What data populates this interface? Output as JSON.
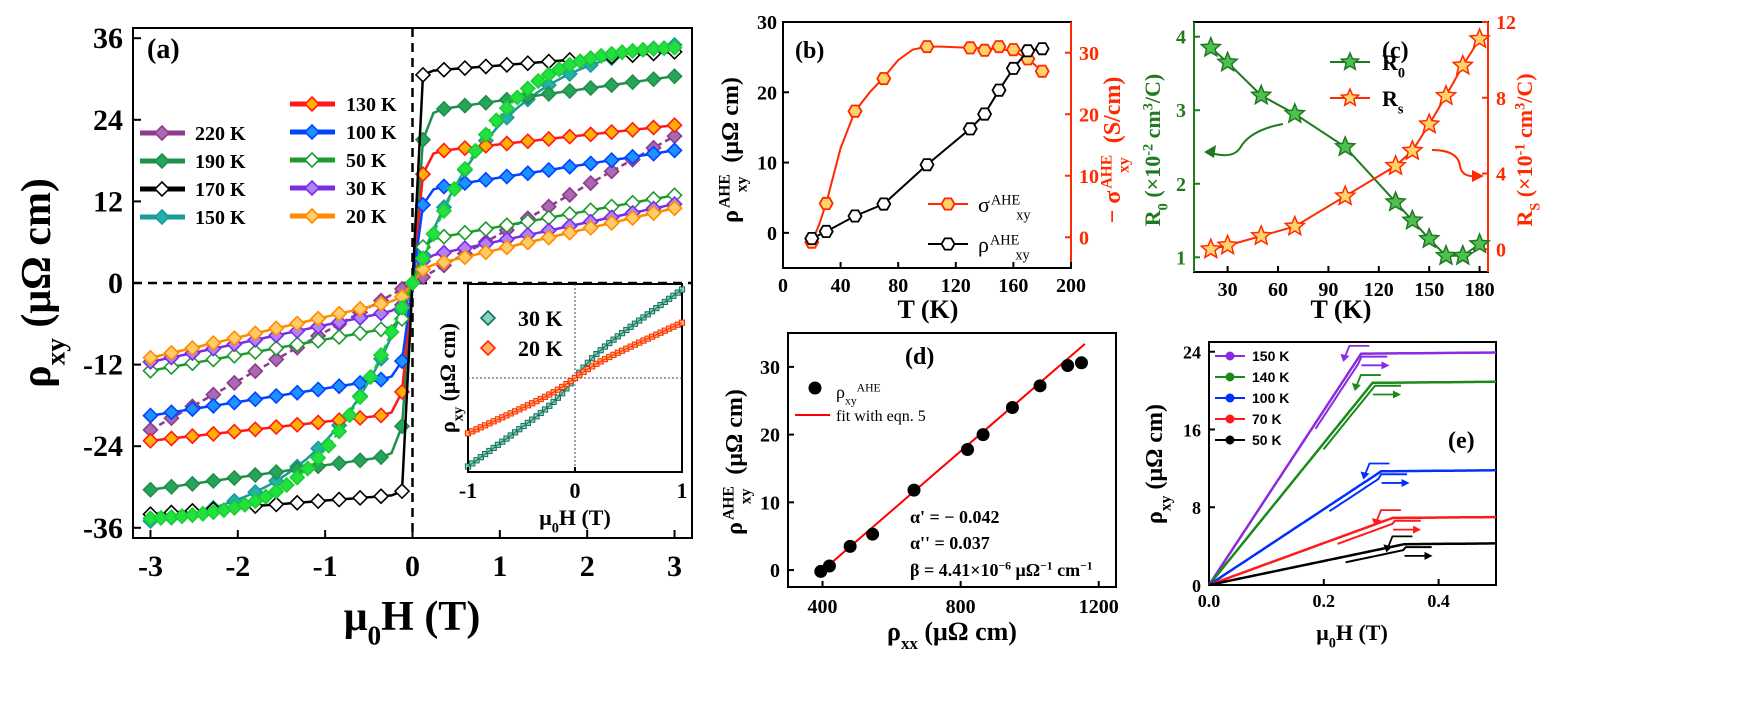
{
  "chart_data": [
    {
      "id": "a",
      "type": "line",
      "panel_label": "(a)",
      "xlabel_main": "μ",
      "xlabel_sub": "0",
      "xlabel_rest": "H (T)",
      "ylabel_main": "ρ",
      "ylabel_sub": "xy",
      "ylabel_rest": " (μΩ cm)",
      "xlim": [
        -3.2,
        3.2
      ],
      "ylim": [
        -37.5,
        37.5
      ],
      "xticks": [
        -3,
        -2,
        -1,
        0,
        1,
        2,
        3
      ],
      "xtick_labels": [
        "-3",
        "-2",
        "-1",
        "0",
        "1",
        "2",
        "3"
      ],
      "yticks": [
        -36,
        -24,
        -12,
        0,
        12,
        24,
        36
      ],
      "ytick_labels": [
        "-36",
        "-24",
        "-12",
        "0",
        "12",
        "24",
        "36"
      ],
      "series": [
        {
          "name": "220 K",
          "color": "#8e3a8e",
          "fill": "#a86ab0",
          "sat": 0,
          "slope": 7.2,
          "jump": 0.5
        },
        {
          "name": "190 K",
          "color": "#1f8f4a",
          "fill": "#27a35a",
          "sat": 25.0,
          "slope": 1.8,
          "jump": 0.2
        },
        {
          "name": "170 K",
          "color": "#000000",
          "fill": "#ffffff",
          "sat": 31.0,
          "slope": 1.1,
          "jump": 0.1
        },
        {
          "name": "150 K",
          "color": "#1a9a9a",
          "fill": "#22b0a8",
          "sat": 0,
          "slope": 11.5,
          "jump": 0.8
        },
        {
          "name": "130 K",
          "color": "#ff1a1a",
          "fill": "#ffb000",
          "sat": 19.0,
          "slope": 1.4,
          "jump": 0.1
        },
        {
          "name": "100 K",
          "color": "#0044ff",
          "fill": "#1e90ff",
          "sat": 13.5,
          "slope": 2.0,
          "jump": 0.1
        },
        {
          "name": "50 K",
          "color": "#1e9a2e",
          "fill": "#ffffff",
          "sat": 6.0,
          "slope": 2.3,
          "jump": 0.1
        },
        {
          "name": "30 K",
          "color": "#7a2ee0",
          "fill": "#b080ff",
          "sat": 3.5,
          "slope": 2.7,
          "jump": 0.1
        },
        {
          "name": "20 K",
          "color": "#ff8c00",
          "fill": "#ffcc66",
          "sat": 2.0,
          "slope": 3.0,
          "jump": 0.1
        },
        {
          "name": "",
          "color": "#18d030",
          "fill": "#22e040",
          "sat": 0,
          "slope": 12.5,
          "jump": 1.6
        }
      ],
      "legend_left": [
        "220 K",
        "190 K",
        "170 K",
        "150 K"
      ],
      "legend_right": [
        "130 K",
        "100 K",
        "50 K",
        "30 K",
        "20 K"
      ],
      "inset": {
        "ylabel_main": "ρ",
        "ylabel_sub": "xy",
        "ylabel_rest": " (μΩ cm)",
        "xlabel_main": "μ",
        "xlabel_sub": "0",
        "xlabel_rest": "H (T)",
        "xticks": [
          "-1",
          "0",
          "1"
        ],
        "legend": [
          "30 K",
          "20 K"
        ],
        "colors": [
          "#1a6e5a",
          "#ff2a00"
        ],
        "fills": [
          "#7fd4c0",
          "#ffb070"
        ],
        "slopes": [
          7.0,
          4.5
        ]
      }
    },
    {
      "id": "b",
      "type": "line",
      "panel_label": "(b)",
      "xlabel": "T (K)",
      "ylabel_left_main": "ρ",
      "ylabel_left_sup": "AHE",
      "ylabel_left_sub": "xy",
      "ylabel_left_rest": " (μΩ cm)",
      "ylabel_right_prefix": "− σ",
      "ylabel_right_sup": "AHE",
      "ylabel_right_sub": "xy",
      "ylabel_right_rest": " (S/cm)",
      "xlim": [
        0,
        200
      ],
      "ylim_left": [
        -5,
        30
      ],
      "ylim_right": [
        -5,
        35
      ],
      "xticks": [
        "0",
        "40",
        "80",
        "120",
        "160",
        "200"
      ],
      "yticks_left": [
        "0",
        "10",
        "20",
        "30"
      ],
      "yticks_right": [
        "0",
        "10",
        "20",
        "30"
      ],
      "rho_T": [
        20,
        30,
        50,
        70,
        100,
        130,
        140,
        150,
        160,
        170,
        180
      ],
      "rho_values": [
        -0.8,
        0.2,
        2.4,
        4.1,
        9.7,
        14.8,
        16.9,
        20.3,
        23.4,
        25.9,
        26.2
      ],
      "sigma_T": [
        20,
        30,
        50,
        70,
        100,
        130,
        140,
        150,
        160,
        170,
        180
      ],
      "sigma_values": [
        -0.8,
        5.5,
        20.5,
        25.8,
        31.0,
        30.8,
        30.4,
        31.0,
        30.5,
        29.0,
        27.0
      ],
      "legend": [
        {
          "main": "σ",
          "sup": "AHE",
          "sub": "xy",
          "color": "#ff2a00",
          "fill": "#ffd36b"
        },
        {
          "main": "ρ",
          "sup": "AHE",
          "sub": "xy",
          "color": "#000000",
          "fill": "#ffffff"
        }
      ]
    },
    {
      "id": "c",
      "type": "line",
      "panel_label": "(c)",
      "xlabel": "T (K)",
      "ylabel_left_main": "R",
      "ylabel_left_sub": "0",
      "ylabel_left_rest": " (×10",
      "ylabel_left_exp": "-2",
      "ylabel_left_unit": " cm",
      "ylabel_left_unit_exp": "3",
      "ylabel_left_end": "/C)",
      "ylabel_right_main": "R",
      "ylabel_right_sub": "S",
      "ylabel_right_rest": " (×10",
      "ylabel_right_exp": "-1",
      "ylabel_right_unit": " cm",
      "ylabel_right_unit_exp": "3",
      "ylabel_right_end": "/C)",
      "xlim": [
        10,
        185
      ],
      "ylim_left": [
        0.8,
        4.2
      ],
      "ylim_right": [
        -1.2,
        12
      ],
      "xticks": [
        "30",
        "60",
        "90",
        "120",
        "150",
        "180"
      ],
      "yticks_left": [
        "1",
        "2",
        "3",
        "4"
      ],
      "yticks_right": [
        "0",
        "4",
        "8",
        "12"
      ],
      "T": [
        20,
        30,
        50,
        70,
        100,
        130,
        140,
        150,
        160,
        170,
        180
      ],
      "R0": [
        3.85,
        3.65,
        3.2,
        2.95,
        2.5,
        1.75,
        1.5,
        1.25,
        1.02,
        1.02,
        1.18
      ],
      "Rs": [
        0.0,
        0.2,
        0.7,
        1.2,
        2.8,
        4.4,
        5.2,
        6.6,
        8.1,
        9.7,
        11.1
      ],
      "legend": [
        {
          "main": "R",
          "sub": "0",
          "color": "#1f7a1f",
          "fill": "#4fbf4f"
        },
        {
          "main": "R",
          "sub": "s",
          "color": "#ff2a00",
          "fill": "#ffd36b"
        }
      ]
    },
    {
      "id": "d",
      "type": "scatter",
      "panel_label": "(d)",
      "xlabel_main": "ρ",
      "xlabel_sub": "xx",
      "xlabel_rest": " (μΩ cm)",
      "ylabel_main": "ρ",
      "ylabel_sup": "AHE",
      "ylabel_sub": "xy",
      "ylabel_rest": " (μΩ cm)",
      "xlim": [
        300,
        1250
      ],
      "ylim": [
        -2.5,
        35
      ],
      "xticks": [
        "400",
        "800",
        "1200"
      ],
      "yticks": [
        "0",
        "10",
        "20",
        "30"
      ],
      "x": [
        395,
        420,
        480,
        545,
        665,
        820,
        865,
        950,
        1030,
        1110,
        1150
      ],
      "y": [
        -0.2,
        0.6,
        3.5,
        5.3,
        11.8,
        17.8,
        20.0,
        24.0,
        27.2,
        30.2,
        30.6
      ],
      "fit_x": [
        390,
        1160
      ],
      "fit_y": [
        -0.5,
        33.4
      ],
      "legend_points_main": "ρ",
      "legend_points_sub": "xy",
      "legend_points_sup": "AHE",
      "legend_fit": "fit with eqn. 5",
      "annot_alpha1": "α' = − 0.042",
      "annot_alpha2": "α'' = 0.037",
      "annot_beta_main": "β = 4.41×10",
      "annot_beta_exp": "−6",
      "annot_beta_unit": " μΩ",
      "annot_beta_unit_exp": "−1",
      "annot_beta_end": " cm",
      "annot_beta_end_exp": "−1"
    },
    {
      "id": "e",
      "type": "line",
      "panel_label": "(e)",
      "xlabel_main": "μ",
      "xlabel_sub": "0",
      "xlabel_rest": "H (T)",
      "ylabel_main": "ρ",
      "ylabel_sub": "xy",
      "ylabel_rest": " (μΩ cm)",
      "xlim": [
        0,
        0.5
      ],
      "ylim": [
        0,
        25
      ],
      "xticks": [
        "0.0",
        "0.2",
        "0.4"
      ],
      "yticks": [
        "0",
        "8",
        "16",
        "24"
      ],
      "series": [
        {
          "name": "150 K",
          "color": "#8a2be2",
          "sat": 23.8,
          "hsat": 0.265
        },
        {
          "name": "140 K",
          "color": "#1a8a1a",
          "sat": 20.8,
          "hsat": 0.285
        },
        {
          "name": "100 K",
          "color": "#0030ff",
          "sat": 11.7,
          "hsat": 0.3
        },
        {
          "name": "70 K",
          "color": "#ff1a1a",
          "sat": 6.9,
          "hsat": 0.32
        },
        {
          "name": "50 K",
          "color": "#000000",
          "sat": 4.2,
          "hsat": 0.34
        }
      ]
    }
  ]
}
